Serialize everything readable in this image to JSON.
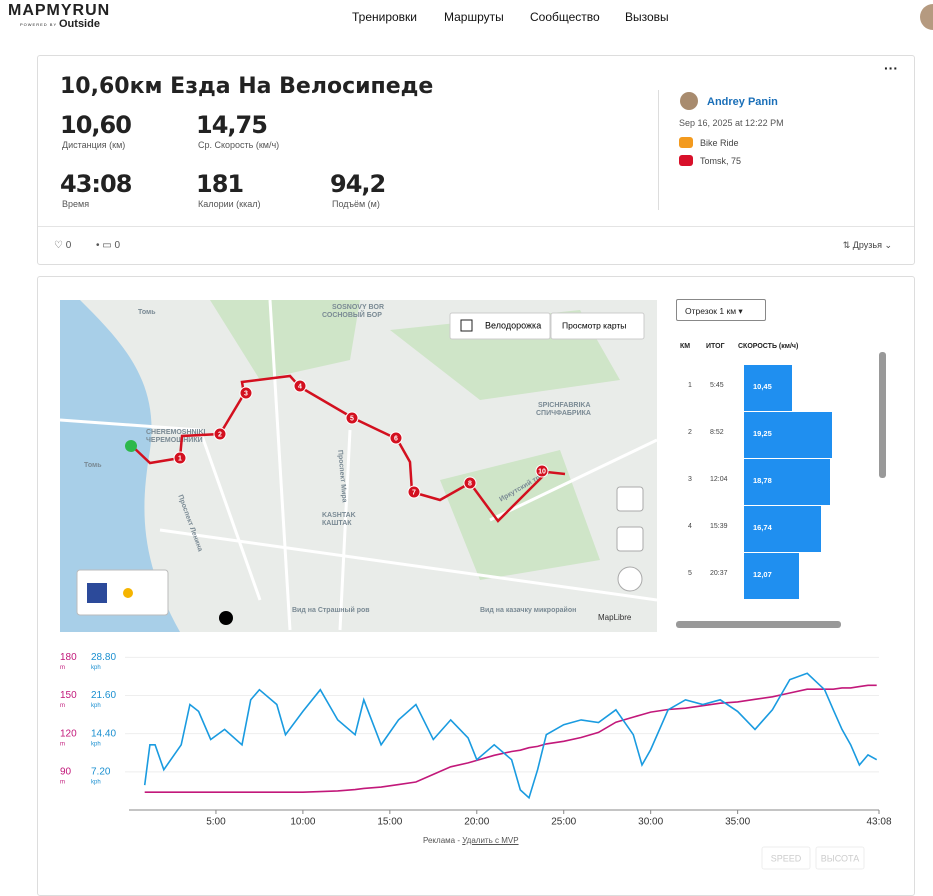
{
  "nav": {
    "logo": "MAPMYRUN",
    "logo_sub": "POWERED BY",
    "logo_brand": "Outside",
    "links": [
      "Тренировки",
      "Маршруты",
      "Сообщество",
      "Вызовы"
    ]
  },
  "workout": {
    "title": "10,60км Езда На Велосипеде",
    "stats": [
      {
        "value": "10,60",
        "label": "Дистанция (км)"
      },
      {
        "value": "14,75",
        "label": "Ср. Скорость (км/ч)"
      },
      {
        "value": "43:08",
        "label": "Время"
      },
      {
        "value": "181",
        "label": "Калории (ккал)"
      },
      {
        "value": "94,2",
        "label": "Подъём (м)"
      }
    ],
    "user": {
      "name": "Andrey Panin",
      "date": "Sep 16, 2025 at 12:22 PM",
      "activity": "Bike Ride",
      "location": "Tomsk, 75"
    },
    "likes": "0",
    "comments": "0",
    "privacy": "Друзья"
  },
  "map": {
    "bike_lane": "Велодорожка",
    "view": "Просмотр карты",
    "attribution": "MapLibre",
    "labels": [
      "Томь",
      "CHEREMOSHNIKI",
      "ЧЕРЕМОШНИКИ",
      "Проспект Ленина",
      "Проспект Мира",
      "KASHTAK",
      "КАШТАК",
      "SOSNOVY BOR",
      "СОСНОВЫЙ БОР",
      "SPICHFABRIKA",
      "СПИЧФАБРИКА",
      "Томь",
      "Вид на Страшный ров",
      "Вид на казачку микрорайон",
      "Иркутский тракт"
    ],
    "markers": [
      "1",
      "2",
      "3",
      "4",
      "5",
      "6",
      "7",
      "8",
      "10"
    ]
  },
  "splits": {
    "selector": "Отрезок 1 км",
    "headers": [
      "КМ",
      "ИТОГ",
      "СКОРОСТЬ (км/ч)"
    ],
    "km": [
      1,
      2,
      3,
      4,
      5
    ],
    "total": [
      "5:45",
      "8:52",
      "12:04",
      "15:39",
      "20:37"
    ],
    "speed": [
      10.45,
      19.25,
      18.78,
      16.74,
      12.07
    ],
    "speed_labels": [
      "10,45",
      "19,25",
      "18,78",
      "16,74",
      "12,07"
    ],
    "color": "#1f8ff0"
  },
  "chart_data": {
    "type": "line",
    "x": [
      0.9,
      1.2,
      1.5,
      2,
      3,
      3.5,
      4,
      4.7,
      5.5,
      6.5,
      7,
      7.5,
      8.5,
      9,
      10,
      11,
      12,
      13,
      13.5,
      14.5,
      15.5,
      16.5,
      17.5,
      18.5,
      19.5,
      20,
      21,
      22,
      22.5,
      23,
      23.5,
      24,
      25,
      26,
      27,
      28,
      29,
      29.5,
      30,
      31,
      32,
      33,
      34,
      35,
      36,
      37,
      38,
      39,
      40,
      40.5,
      41,
      41.5,
      42,
      42.5,
      43
    ],
    "xlim": [
      0,
      43.13
    ],
    "xticks": [
      {
        "value": 5,
        "label": "5:00"
      },
      {
        "value": 10,
        "label": "10:00"
      },
      {
        "value": 15,
        "label": "15:00"
      },
      {
        "value": 20,
        "label": "20:00"
      },
      {
        "value": 25,
        "label": "25:00"
      },
      {
        "value": 30,
        "label": "30:00"
      },
      {
        "value": 35,
        "label": "35:00"
      },
      {
        "value": 43.13,
        "label": "43:08"
      }
    ],
    "ylim": [
      60,
      185
    ],
    "yticks": [
      90,
      120,
      150,
      180
    ],
    "y_unit": "m",
    "y_color": "#c2187a",
    "y2lim": [
      0,
      30
    ],
    "y2ticks": [
      {
        "value": 7.2,
        "label": "7.20"
      },
      {
        "value": 14.4,
        "label": "14.40"
      },
      {
        "value": 21.6,
        "label": "21.60"
      },
      {
        "value": 28.8,
        "label": "28.80"
      }
    ],
    "y2_unit": "kph",
    "y2_color": "#1a8fd0",
    "grid": true,
    "series": [
      {
        "name": "SPEED",
        "color": "#1a9be0",
        "axis": "y2",
        "values": [
          4.7,
          12.3,
          12.3,
          7.6,
          12.3,
          19.9,
          18.6,
          13.3,
          15.2,
          12.3,
          20.8,
          22.7,
          19.9,
          14.2,
          18.6,
          22.7,
          17,
          14.2,
          20.8,
          12.3,
          17,
          19.9,
          13.3,
          17,
          13.6,
          9.5,
          12.3,
          9.5,
          3.8,
          2.3,
          7.6,
          14.2,
          16.1,
          17,
          16.5,
          18.9,
          14.2,
          8.5,
          11.4,
          18.9,
          20.8,
          19.9,
          20.8,
          18.6,
          15.2,
          18.9,
          24.6,
          25.8,
          22.7,
          18.9,
          15.2,
          12.3,
          8.5,
          10.4,
          9.5
        ]
      },
      {
        "name": "ВЫСОТА",
        "color": "#c2187a",
        "values": [
          74,
          74,
          74,
          74,
          74,
          74,
          74,
          74,
          74,
          74,
          74,
          74,
          74,
          74,
          74,
          74.5,
          75,
          76,
          77,
          78,
          80,
          82,
          88,
          94,
          97,
          99,
          103,
          106,
          107,
          109,
          110,
          112,
          114,
          117,
          121,
          129,
          133,
          135,
          137,
          139,
          140,
          142,
          144,
          145,
          147,
          149,
          152,
          155,
          155,
          155,
          156,
          156,
          157,
          158,
          158
        ]
      }
    ]
  },
  "ad": {
    "label": "Реклама - ",
    "link": "Удалить с MVP"
  }
}
